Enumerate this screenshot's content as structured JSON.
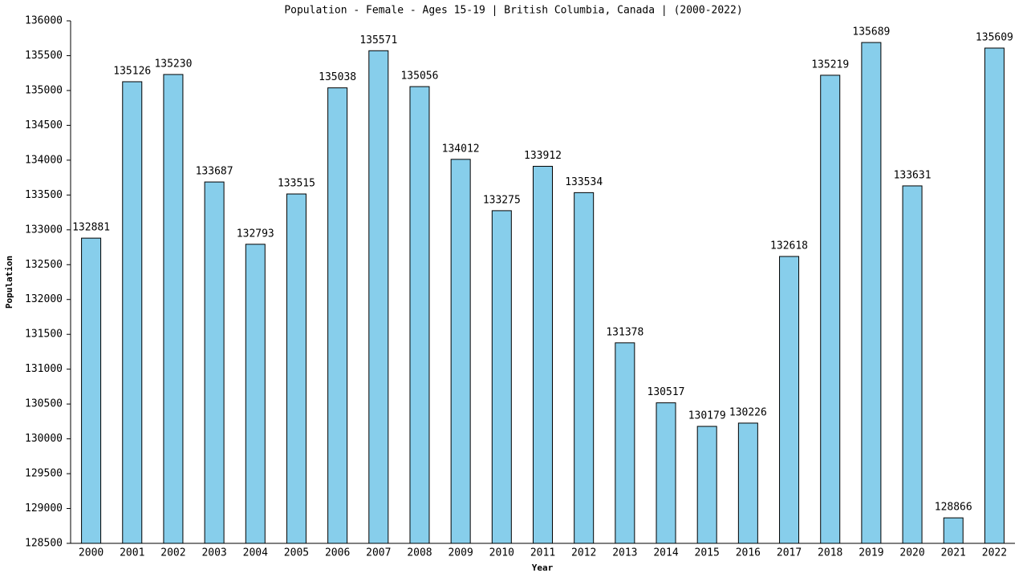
{
  "chart_data": {
    "type": "bar",
    "title": "Population - Female - Ages 15-19 | British Columbia, Canada |  (2000-2022)",
    "x_label": "Year",
    "y_label": "Population",
    "categories": [
      "2000",
      "2001",
      "2002",
      "2003",
      "2004",
      "2005",
      "2006",
      "2007",
      "2008",
      "2009",
      "2010",
      "2011",
      "2012",
      "2013",
      "2014",
      "2015",
      "2016",
      "2017",
      "2018",
      "2019",
      "2020",
      "2021",
      "2022"
    ],
    "values": [
      132881,
      135126,
      135230,
      133687,
      132793,
      133515,
      135038,
      135571,
      135056,
      134012,
      133275,
      133912,
      133534,
      131378,
      130517,
      130179,
      130226,
      132618,
      135219,
      135689,
      133631,
      128866,
      135609
    ],
    "color": "#87ceeb",
    "ylim": [
      128500,
      136000
    ],
    "yticks": [
      128500,
      129000,
      129500,
      130000,
      130500,
      131000,
      131500,
      132000,
      132500,
      133000,
      133500,
      134000,
      134500,
      135000,
      135500,
      136000
    ],
    "grid": false
  }
}
